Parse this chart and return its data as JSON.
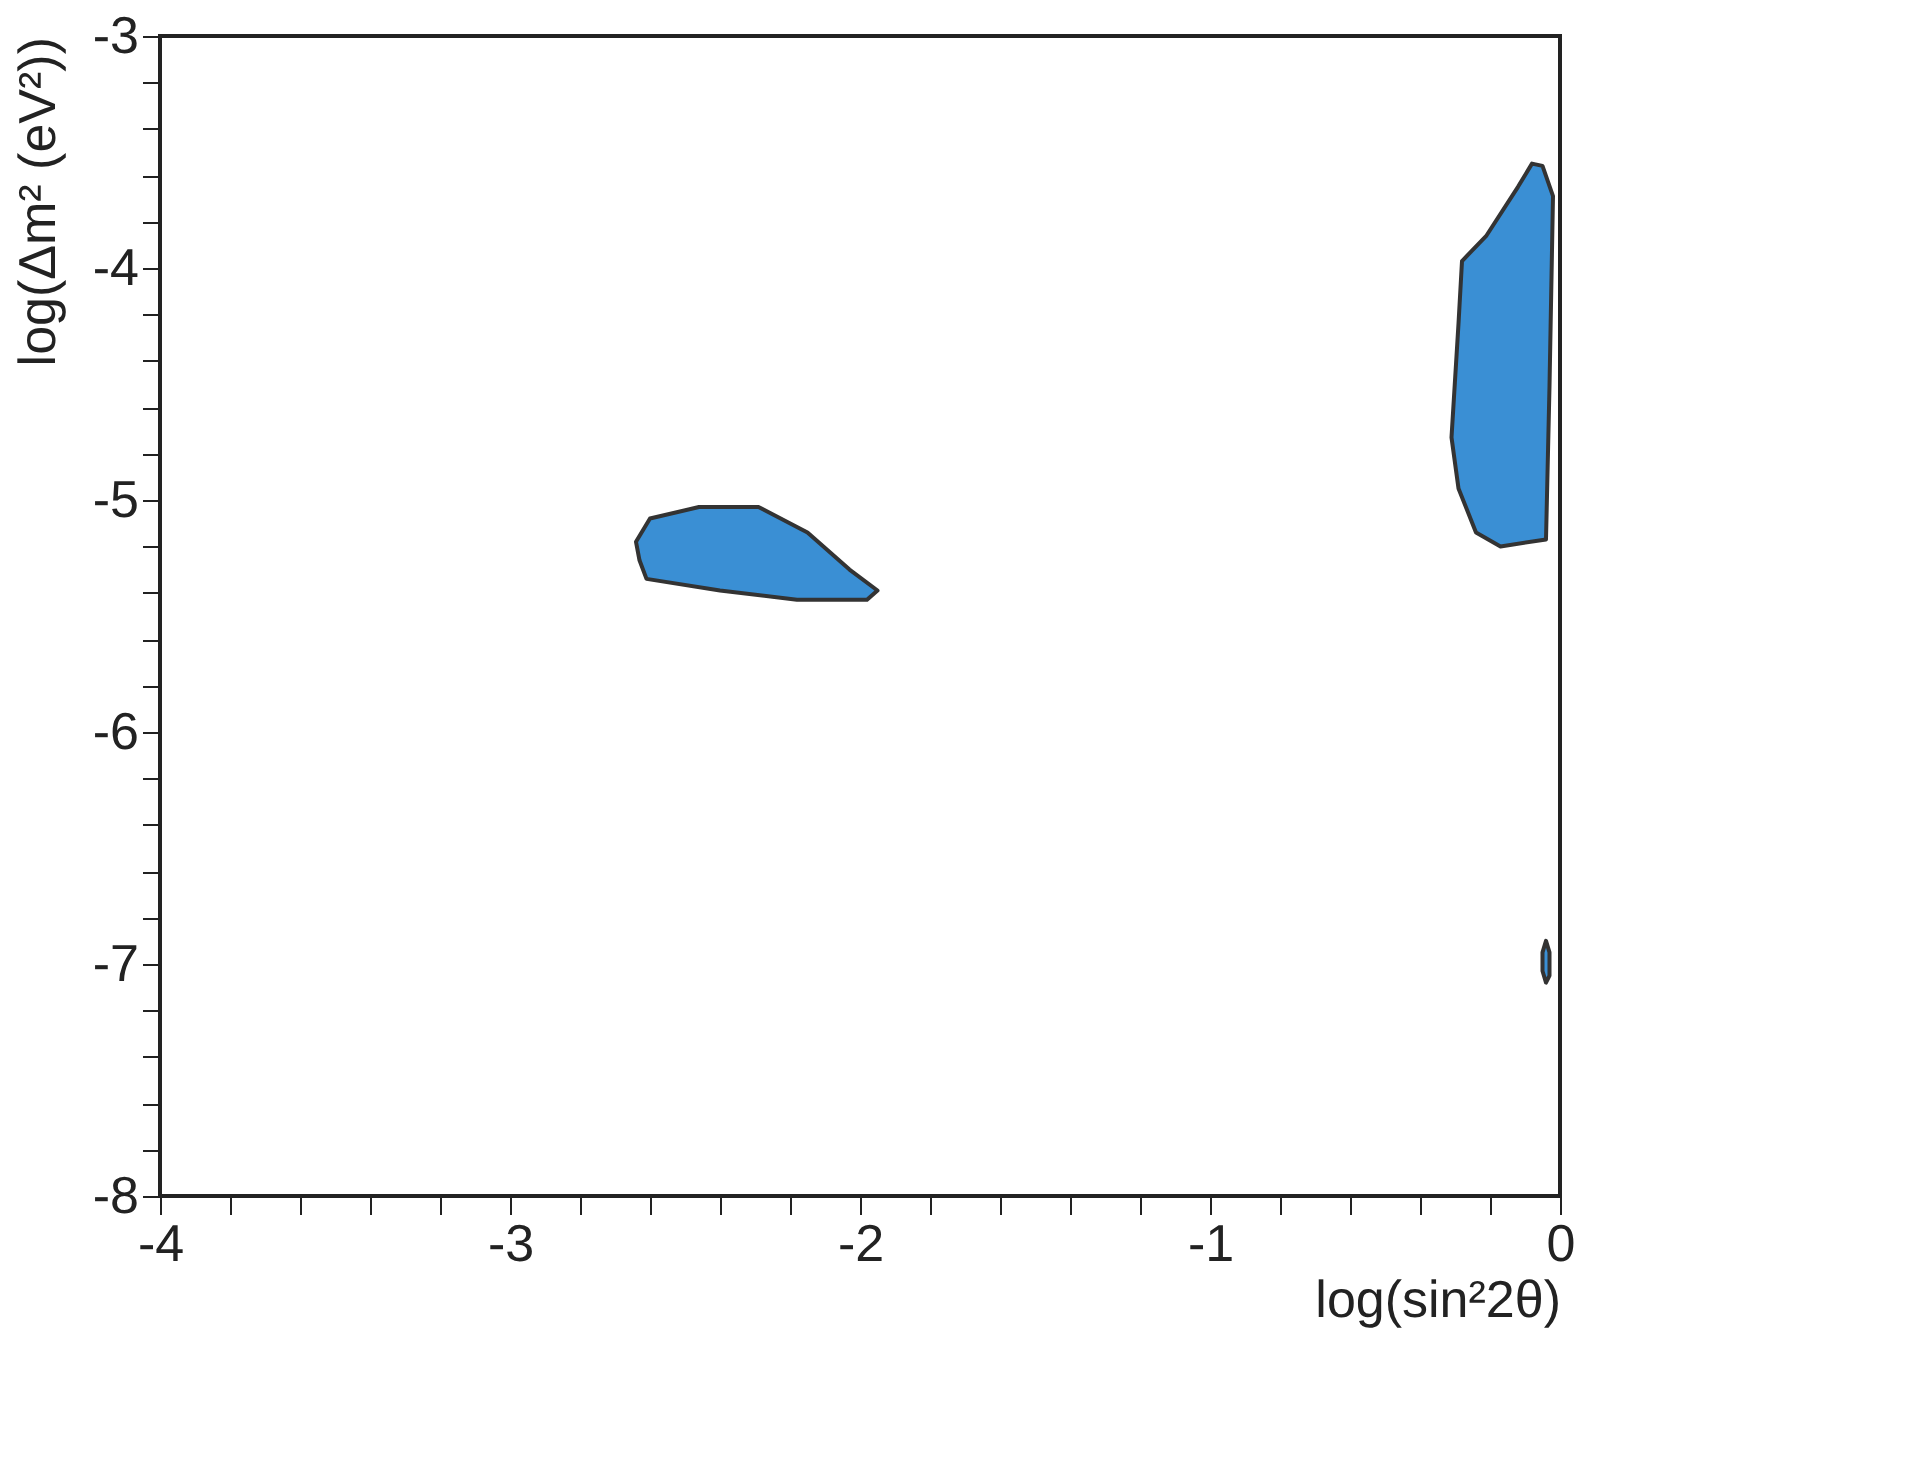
{
  "chart_data": {
    "type": "area",
    "xlabel": "log(sin²2θ)",
    "ylabel": "log(Δm² (eV²))",
    "xlim": [
      -4,
      0
    ],
    "ylim": [
      -8,
      -3
    ],
    "xticks": [
      -4,
      {
        "value": -3.8,
        "label": null
      },
      {
        "value": -3.6,
        "label": null
      },
      {
        "value": -3.4,
        "label": null
      },
      {
        "value": -3.2,
        "label": null
      },
      -3,
      {
        "value": -2.8,
        "label": null
      },
      {
        "value": -2.6,
        "label": null
      },
      {
        "value": -2.4,
        "label": null
      },
      {
        "value": -2.2,
        "label": null
      },
      -2,
      {
        "value": -1.8,
        "label": null
      },
      {
        "value": -1.6,
        "label": null
      },
      {
        "value": -1.4,
        "label": null
      },
      {
        "value": -1.2,
        "label": null
      },
      -1,
      {
        "value": -0.8,
        "label": null
      },
      {
        "value": -0.6,
        "label": null
      },
      {
        "value": -0.4,
        "label": null
      },
      {
        "value": -0.2,
        "label": null
      },
      0
    ],
    "yticks": [
      -8,
      {
        "value": -7.8,
        "label": null
      },
      {
        "value": -7.6,
        "label": null
      },
      {
        "value": -7.4,
        "label": null
      },
      {
        "value": -7.2,
        "label": null
      },
      -7,
      {
        "value": -6.8,
        "label": null
      },
      {
        "value": -6.6,
        "label": null
      },
      {
        "value": -6.4,
        "label": null
      },
      {
        "value": -6.2,
        "label": null
      },
      -6,
      {
        "value": -5.8,
        "label": null
      },
      {
        "value": -5.6,
        "label": null
      },
      {
        "value": -5.4,
        "label": null
      },
      {
        "value": -5.2,
        "label": null
      },
      -5,
      {
        "value": -4.8,
        "label": null
      },
      {
        "value": -4.6,
        "label": null
      },
      {
        "value": -4.4,
        "label": null
      },
      {
        "value": -4.2,
        "label": null
      },
      -4,
      {
        "value": -3.8,
        "label": null
      },
      {
        "value": -3.6,
        "label": null
      },
      {
        "value": -3.4,
        "label": null
      },
      {
        "value": -3.2,
        "label": null
      },
      -3
    ],
    "grid": false,
    "series": [
      {
        "color": "#3a8fd4",
        "x": [
          -2.64,
          -2.6,
          -2.46,
          -2.29,
          -2.15,
          -2.03,
          -1.95,
          -1.98,
          -2.18,
          -2.4,
          -2.61,
          -2.63
        ],
        "values": [
          -5.18,
          -5.08,
          -5.03,
          -5.03,
          -5.14,
          -5.3,
          -5.39,
          -5.43,
          -5.43,
          -5.39,
          -5.34,
          -5.26
        ]
      },
      {
        "color": "#3a8fd4",
        "x": [
          -0.08,
          -0.12,
          -0.21,
          -0.28,
          -0.29,
          -0.31,
          -0.29,
          -0.24,
          -0.17,
          -0.04,
          -0.03,
          -0.02,
          -0.05
        ],
        "values": [
          -3.55,
          -3.65,
          -3.86,
          -3.97,
          -4.24,
          -4.73,
          -4.95,
          -5.14,
          -5.2,
          -5.17,
          -4.51,
          -3.69,
          -3.56
        ]
      },
      {
        "color": "#3a8fd4",
        "x": [
          -0.04,
          -0.03,
          -0.03,
          -0.04,
          -0.05,
          -0.05
        ],
        "values": [
          -6.9,
          -6.95,
          -7.05,
          -7.08,
          -7.03,
          -6.95
        ]
      }
    ]
  }
}
